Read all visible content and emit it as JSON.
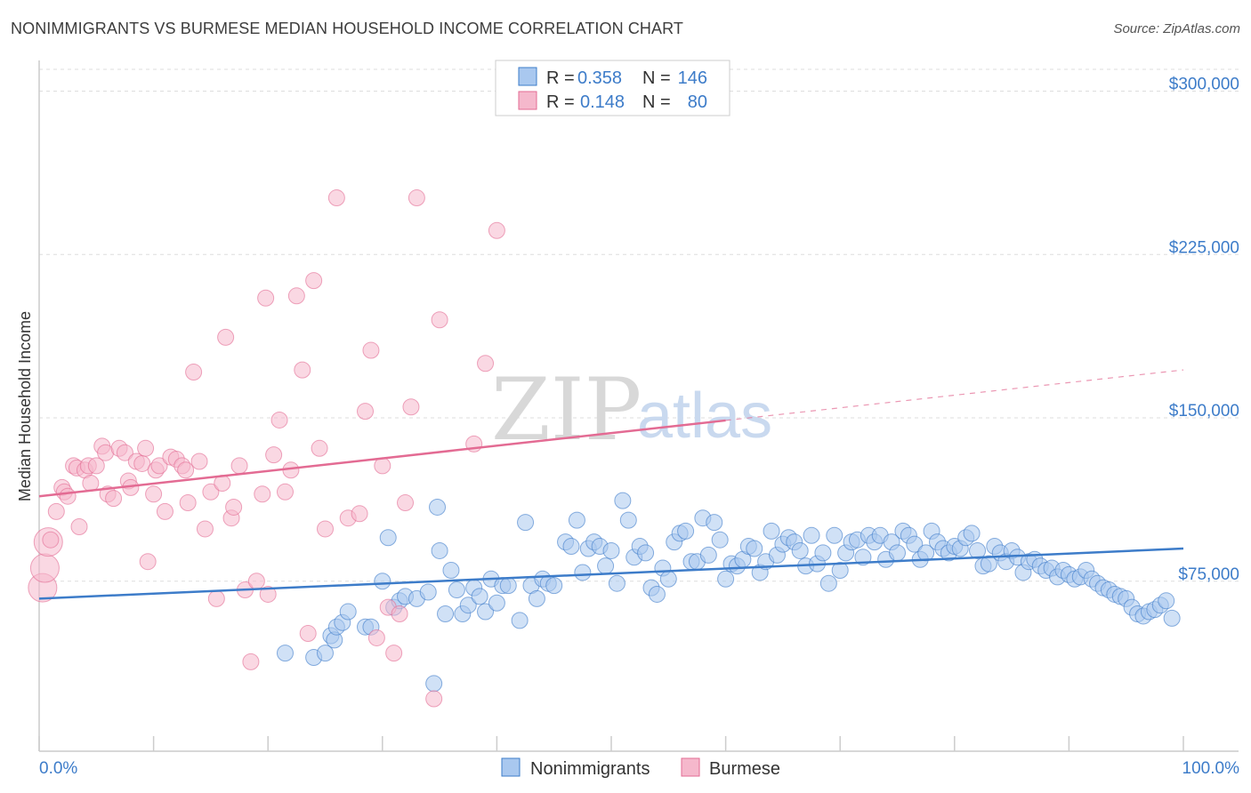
{
  "title": "NONIMMIGRANTS VS BURMESE MEDIAN HOUSEHOLD INCOME CORRELATION CHART",
  "source": "Source: ZipAtlas.com",
  "watermark": {
    "zip": "ZIP",
    "atlas": "atlas"
  },
  "colors": {
    "blue": "#3d7cc9",
    "blue_fill": "#a9c8ef",
    "pink": "#e36b93",
    "pink_fill": "#f5b8cc",
    "grid": "#dddddd"
  },
  "legend_top": {
    "rows": [
      {
        "r_label": "R =",
        "r_value": "0.358",
        "n_label": "N =",
        "n_value": "146",
        "series": "blue"
      },
      {
        "r_label": "R =",
        "r_value": "0.148",
        "n_label": "N =",
        "n_value": "80",
        "series": "pink"
      }
    ]
  },
  "legend_bottom": {
    "nonimmigrants": "Nonimmigrants",
    "burmese": "Burmese"
  },
  "chart_data": {
    "type": "scatter",
    "title": "NONIMMIGRANTS VS BURMESE MEDIAN HOUSEHOLD INCOME CORRELATION CHART",
    "xlabel": "",
    "ylabel": "Median Household Income",
    "x_tick_labels": [
      "0.0%",
      "100.0%"
    ],
    "y_tick_labels": [
      "$75,000",
      "$150,000",
      "$225,000",
      "$300,000"
    ],
    "y_ticks": [
      75000,
      150000,
      225000,
      300000
    ],
    "xlim": [
      0,
      100
    ],
    "ylim": [
      10000,
      310000
    ],
    "grid": true,
    "legend_position": "top-center",
    "series": [
      {
        "name": "Nonimmigrants",
        "color": "#3d7cc9",
        "r": 0.358,
        "n": 146,
        "trend": {
          "x": [
            0,
            100
          ],
          "y": [
            67000,
            90000
          ],
          "dashed_from_x": null
        },
        "points": [
          [
            21.5,
            42000
          ],
          [
            24,
            40000
          ],
          [
            25,
            42000
          ],
          [
            25.5,
            50000
          ],
          [
            25.8,
            48000
          ],
          [
            26,
            54000
          ],
          [
            26.5,
            56000
          ],
          [
            27,
            61000
          ],
          [
            28.5,
            54000
          ],
          [
            29,
            54000
          ],
          [
            30,
            75000
          ],
          [
            30.5,
            95000
          ],
          [
            31,
            63000
          ],
          [
            31.5,
            66000
          ],
          [
            32,
            68000
          ],
          [
            33,
            67000
          ],
          [
            34,
            70000
          ],
          [
            34.5,
            28000
          ],
          [
            34.8,
            109000
          ],
          [
            35,
            89000
          ],
          [
            35.5,
            60000
          ],
          [
            36,
            80000
          ],
          [
            36.5,
            71000
          ],
          [
            37,
            60000
          ],
          [
            37.5,
            64000
          ],
          [
            38,
            72000
          ],
          [
            38.5,
            68000
          ],
          [
            39,
            61000
          ],
          [
            39.5,
            76000
          ],
          [
            40,
            65000
          ],
          [
            40.5,
            73000
          ],
          [
            41,
            73000
          ],
          [
            42,
            57000
          ],
          [
            42.5,
            102000
          ],
          [
            43,
            73000
          ],
          [
            43.5,
            67000
          ],
          [
            44,
            76000
          ],
          [
            44.5,
            74000
          ],
          [
            45,
            73000
          ],
          [
            46,
            93000
          ],
          [
            46.5,
            91000
          ],
          [
            47,
            103000
          ],
          [
            47.5,
            79000
          ],
          [
            48,
            90000
          ],
          [
            48.5,
            93000
          ],
          [
            49,
            91000
          ],
          [
            49.5,
            82000
          ],
          [
            50,
            89000
          ],
          [
            50.5,
            74000
          ],
          [
            51,
            112000
          ],
          [
            51.5,
            103000
          ],
          [
            52,
            86000
          ],
          [
            52.5,
            91000
          ],
          [
            53,
            88000
          ],
          [
            53.5,
            72000
          ],
          [
            54,
            69000
          ],
          [
            54.5,
            81000
          ],
          [
            55,
            76000
          ],
          [
            55.5,
            93000
          ],
          [
            56,
            97000
          ],
          [
            56.5,
            98000
          ],
          [
            57,
            84000
          ],
          [
            57.5,
            84000
          ],
          [
            58,
            104000
          ],
          [
            58.5,
            87000
          ],
          [
            59,
            102000
          ],
          [
            59.5,
            94000
          ],
          [
            60,
            76000
          ],
          [
            60.5,
            83000
          ],
          [
            61,
            82000
          ],
          [
            61.5,
            85000
          ],
          [
            62,
            91000
          ],
          [
            62.5,
            90000
          ],
          [
            63,
            79000
          ],
          [
            63.5,
            84000
          ],
          [
            64,
            98000
          ],
          [
            64.5,
            87000
          ],
          [
            65,
            92000
          ],
          [
            65.5,
            95000
          ],
          [
            66,
            93000
          ],
          [
            66.5,
            89000
          ],
          [
            67,
            82000
          ],
          [
            67.5,
            96000
          ],
          [
            68,
            83000
          ],
          [
            68.5,
            88000
          ],
          [
            69,
            74000
          ],
          [
            69.5,
            96000
          ],
          [
            70,
            80000
          ],
          [
            70.5,
            88000
          ],
          [
            71,
            93000
          ],
          [
            71.5,
            94000
          ],
          [
            72,
            86000
          ],
          [
            72.5,
            96000
          ],
          [
            73,
            93000
          ],
          [
            73.5,
            96000
          ],
          [
            74,
            85000
          ],
          [
            74.5,
            93000
          ],
          [
            75,
            88000
          ],
          [
            75.5,
            98000
          ],
          [
            76,
            96000
          ],
          [
            76.5,
            92000
          ],
          [
            77,
            85000
          ],
          [
            77.5,
            88000
          ],
          [
            78,
            98000
          ],
          [
            78.5,
            93000
          ],
          [
            79,
            90000
          ],
          [
            79.5,
            88000
          ],
          [
            80,
            91000
          ],
          [
            80.5,
            90000
          ],
          [
            81,
            95000
          ],
          [
            81.5,
            97000
          ],
          [
            82,
            89000
          ],
          [
            82.5,
            82000
          ],
          [
            83,
            83000
          ],
          [
            83.5,
            91000
          ],
          [
            84,
            88000
          ],
          [
            84.5,
            84000
          ],
          [
            85,
            89000
          ],
          [
            85.5,
            86000
          ],
          [
            86,
            79000
          ],
          [
            86.5,
            84000
          ],
          [
            87,
            85000
          ],
          [
            87.5,
            82000
          ],
          [
            88,
            80000
          ],
          [
            88.5,
            81000
          ],
          [
            89,
            77000
          ],
          [
            89.5,
            80000
          ],
          [
            90,
            78000
          ],
          [
            90.5,
            76000
          ],
          [
            91,
            77000
          ],
          [
            91.5,
            80000
          ],
          [
            92,
            76000
          ],
          [
            92.5,
            74000
          ],
          [
            93,
            72000
          ],
          [
            93.5,
            71000
          ],
          [
            94,
            69000
          ],
          [
            94.5,
            68000
          ],
          [
            95,
            67000
          ],
          [
            95.5,
            63000
          ],
          [
            96,
            60000
          ],
          [
            96.5,
            59000
          ],
          [
            97,
            61000
          ],
          [
            97.5,
            62000
          ],
          [
            98,
            64000
          ],
          [
            98.5,
            66000
          ],
          [
            99,
            58000
          ]
        ]
      },
      {
        "name": "Burmese",
        "color": "#e36b93",
        "r": 0.148,
        "n": 80,
        "trend": {
          "x": [
            0,
            100
          ],
          "y": [
            114000,
            172000
          ],
          "dashed_from_x": 60
        },
        "points": [
          [
            0.3,
            72000
          ],
          [
            0.5,
            81000
          ],
          [
            0.8,
            93000
          ],
          [
            1,
            94000
          ],
          [
            1.5,
            107000
          ],
          [
            2,
            118000
          ],
          [
            2.2,
            116000
          ],
          [
            2.5,
            114000
          ],
          [
            3,
            128000
          ],
          [
            3.3,
            127000
          ],
          [
            3.5,
            100000
          ],
          [
            4,
            126000
          ],
          [
            4.3,
            128000
          ],
          [
            4.5,
            120000
          ],
          [
            5,
            128000
          ],
          [
            5.5,
            137000
          ],
          [
            5.8,
            134000
          ],
          [
            6,
            115000
          ],
          [
            6.5,
            113000
          ],
          [
            7,
            136000
          ],
          [
            7.5,
            134000
          ],
          [
            7.8,
            121000
          ],
          [
            8,
            118000
          ],
          [
            8.5,
            130000
          ],
          [
            9,
            129000
          ],
          [
            9.3,
            136000
          ],
          [
            9.5,
            84000
          ],
          [
            10,
            115000
          ],
          [
            10.2,
            126000
          ],
          [
            10.5,
            128000
          ],
          [
            11,
            107000
          ],
          [
            11.5,
            132000
          ],
          [
            12,
            131000
          ],
          [
            12.5,
            128000
          ],
          [
            12.8,
            126000
          ],
          [
            13,
            111000
          ],
          [
            13.5,
            171000
          ],
          [
            14,
            130000
          ],
          [
            14.5,
            99000
          ],
          [
            15,
            116000
          ],
          [
            15.5,
            67000
          ],
          [
            16,
            120000
          ],
          [
            16.3,
            187000
          ],
          [
            16.8,
            104000
          ],
          [
            17,
            109000
          ],
          [
            17.5,
            128000
          ],
          [
            18,
            71000
          ],
          [
            18.5,
            38000
          ],
          [
            19,
            75000
          ],
          [
            19.5,
            115000
          ],
          [
            19.8,
            205000
          ],
          [
            20,
            69000
          ],
          [
            20.5,
            133000
          ],
          [
            21,
            149000
          ],
          [
            21.5,
            116000
          ],
          [
            22,
            126000
          ],
          [
            22.5,
            206000
          ],
          [
            23,
            172000
          ],
          [
            23.5,
            51000
          ],
          [
            24,
            213000
          ],
          [
            24.5,
            136000
          ],
          [
            25,
            99000
          ],
          [
            26,
            251000
          ],
          [
            27,
            104000
          ],
          [
            28,
            106000
          ],
          [
            28.5,
            153000
          ],
          [
            29,
            181000
          ],
          [
            29.5,
            49000
          ],
          [
            30,
            128000
          ],
          [
            30.5,
            63000
          ],
          [
            31,
            42000
          ],
          [
            31.5,
            60000
          ],
          [
            32,
            111000
          ],
          [
            32.5,
            155000
          ],
          [
            33,
            251000
          ],
          [
            34.5,
            21000
          ],
          [
            35,
            195000
          ],
          [
            38,
            138000
          ],
          [
            39,
            175000
          ],
          [
            40,
            236000
          ]
        ]
      }
    ]
  }
}
